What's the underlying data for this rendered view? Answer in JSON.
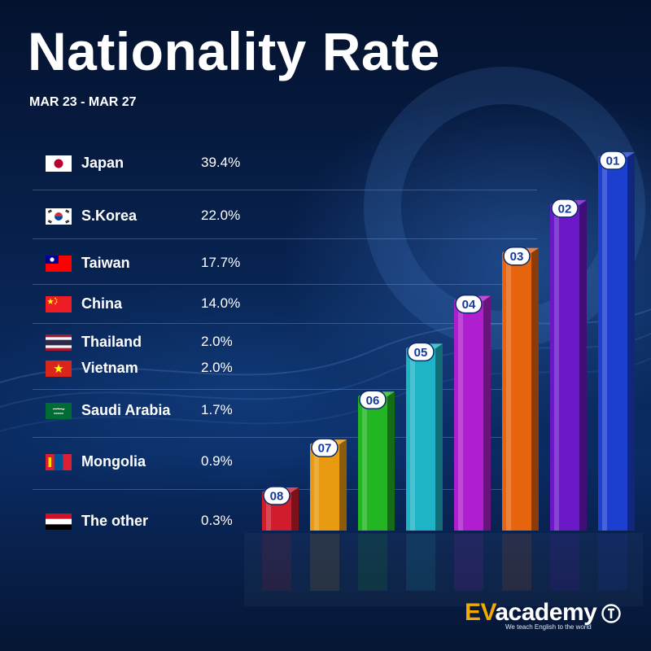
{
  "title": "Nationality Rate",
  "subtitle": "MAR 23 - MAR 27",
  "chart_data": {
    "type": "bar",
    "title": "Nationality Rate",
    "subtitle": "MAR 23 - MAR 27",
    "categories": [
      "Japan",
      "S.Korea",
      "Taiwan",
      "China",
      "Thailand",
      "Vietnam",
      "Saudi Arabia",
      "Mongolia",
      "The other"
    ],
    "values": [
      39.4,
      22.0,
      17.7,
      14.0,
      2.0,
      2.0,
      1.7,
      0.9,
      0.3
    ],
    "value_labels": [
      "39.4%",
      "22.0%",
      "17.7%",
      "14.0%",
      "2.0%",
      "2.0%",
      "1.7%",
      "0.9%",
      "0.3%"
    ],
    "bars": [
      {
        "rank": "01",
        "color": "#1d3fd0"
      },
      {
        "rank": "02",
        "color": "#6a18c8"
      },
      {
        "rank": "03",
        "color": "#e8650f"
      },
      {
        "rank": "04",
        "color": "#b01fcf"
      },
      {
        "rank": "05",
        "color": "#1fb3c6"
      },
      {
        "rank": "06",
        "color": "#22b622"
      },
      {
        "rank": "07",
        "color": "#e89a10"
      },
      {
        "rank": "08",
        "color": "#d01c2c"
      }
    ],
    "legend": "left"
  },
  "countries": [
    {
      "name": "Japan",
      "pct": "39.4%",
      "flag": "japan-flag"
    },
    {
      "name": "S.Korea",
      "pct": "22.0%",
      "flag": "south-korea-flag"
    },
    {
      "name": "Taiwan",
      "pct": "17.7%",
      "flag": "taiwan-flag"
    },
    {
      "name": "China",
      "pct": "14.0%",
      "flag": "china-flag"
    },
    {
      "name": "Thailand",
      "pct": "2.0%",
      "flag": "thailand-flag"
    },
    {
      "name": "Vietnam",
      "pct": "2.0%",
      "flag": "vietnam-flag"
    },
    {
      "name": "Saudi Arabia",
      "pct": "1.7%",
      "flag": "saudi-arabia-flag"
    },
    {
      "name": "Mongolia",
      "pct": "0.9%",
      "flag": "mongolia-flag"
    },
    {
      "name": "The other",
      "pct": "0.3%",
      "flag": "yemen-flag"
    }
  ],
  "logo": {
    "brand_ev": "EV",
    "brand_rest": "academy",
    "tagline": "We teach English to the world",
    "icon": "ev-academy-logo-icon"
  }
}
